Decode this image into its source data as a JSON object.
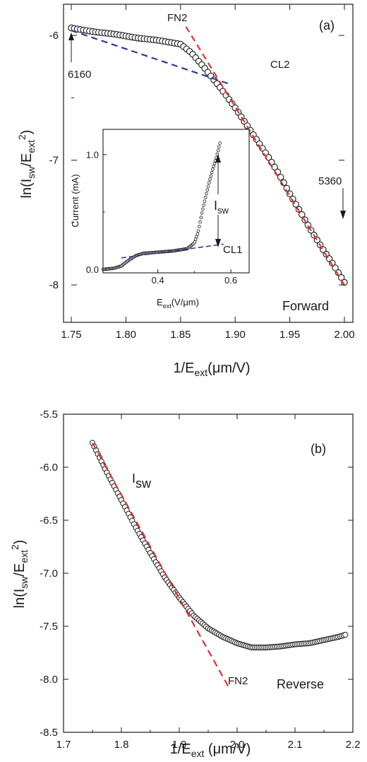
{
  "colors": {
    "fit_fn": "#e03030",
    "fit_cl": "#2a3a9a",
    "marker": "#1a1a1a",
    "marker_fill": "#ffffff"
  },
  "chart_data": [
    {
      "id": "a",
      "type": "scatter",
      "panel_label": "(a)",
      "xlabel": "1/E_ext(μm/V)",
      "xlabel_main": "1/E",
      "xlabel_sub": "ext",
      "xlabel_tail": "(μm/V)",
      "ylabel": "ln(I_sw/E_ext^2)",
      "ylabel_parts": {
        "pre": "ln(I",
        "sub1": "sw",
        "mid": "/E",
        "sub2": "ext",
        "sup": "2",
        "post": ")"
      },
      "xlim": [
        1.75,
        2.0
      ],
      "ylim": [
        -8.3,
        -5.75
      ],
      "xticks": [
        1.75,
        1.8,
        1.85,
        1.9,
        1.95,
        2.0
      ],
      "xtick_labels": [
        "1.75",
        "1.80",
        "1.85",
        "1.90",
        "1.95",
        "2.00"
      ],
      "yticks": [
        -6,
        -7,
        -8
      ],
      "ytick_labels": [
        "-6",
        "-7",
        "-8"
      ],
      "series": [
        {
          "x": [
            1.75,
            1.77,
            1.79,
            1.81,
            1.83,
            1.85,
            1.86,
            1.87,
            1.88,
            1.89,
            1.9,
            1.91,
            1.92,
            1.93,
            1.94,
            1.95,
            1.96,
            1.97,
            1.98,
            1.99,
            2.0
          ],
          "y": [
            -5.94,
            -5.97,
            -5.99,
            -6.02,
            -6.04,
            -6.07,
            -6.14,
            -6.24,
            -6.35,
            -6.46,
            -6.58,
            -6.71,
            -6.84,
            -6.97,
            -7.11,
            -7.27,
            -7.42,
            -7.57,
            -7.71,
            -7.84,
            -7.98
          ]
        }
      ],
      "fits": [
        {
          "label": "FN2",
          "x": [
            1.855,
            2.0
          ],
          "y": [
            -5.93,
            -8.0
          ]
        },
        {
          "label": "CL2",
          "x": [
            1.75,
            1.895
          ],
          "y": [
            -5.96,
            -6.39
          ]
        }
      ],
      "annotations": {
        "fn2": "FN2",
        "cl2": "CL2",
        "start": "6160",
        "end": "5360",
        "direction": "Forward"
      },
      "inset": {
        "type": "scatter",
        "xlabel": "E_ext(V/μm)",
        "xlabel_main": "E",
        "xlabel_sub": "ext",
        "xlabel_tail": "(V/μm)",
        "ylabel": "Current (mA)",
        "xlim": [
          0.25,
          0.65
        ],
        "ylim": [
          -0.03,
          1.22
        ],
        "xticks": [
          0.4,
          0.6
        ],
        "xtick_labels": [
          "0.4",
          "0.6"
        ],
        "yticks": [
          0.0,
          1.0
        ],
        "ytick_labels": [
          "0.0",
          "1.0"
        ],
        "series": [
          {
            "x": [
              0.25,
              0.28,
              0.3,
              0.32,
              0.34,
              0.36,
              0.4,
              0.44,
              0.48,
              0.5,
              0.51,
              0.52,
              0.53,
              0.54,
              0.55,
              0.56,
              0.57
            ],
            "y": [
              0.0,
              0.01,
              0.03,
              0.08,
              0.12,
              0.14,
              0.15,
              0.16,
              0.18,
              0.23,
              0.32,
              0.48,
              0.62,
              0.75,
              0.87,
              0.97,
              1.1
            ]
          }
        ],
        "fits": [
          {
            "label": "CL1",
            "x": [
              0.3,
              0.58
            ],
            "y": [
              0.1,
              0.22
            ]
          }
        ],
        "annotations": {
          "isw": "I",
          "isw_sub": "sw",
          "cl1": "CL1"
        }
      }
    },
    {
      "id": "b",
      "type": "scatter",
      "panel_label": "(b)",
      "xlabel": "1/E_ext (μm/V)",
      "xlabel_main": "1/E",
      "xlabel_sub": "ext",
      "xlabel_tail": " (μm/V)",
      "ylabel": "ln(I_sw/E_ext^2)",
      "ylabel_parts": {
        "pre": "ln(I",
        "sub1": "sw",
        "mid": "/E",
        "sub2": "ext",
        "sup": "2",
        "post": ")"
      },
      "xlim": [
        1.7,
        2.2
      ],
      "ylim": [
        -8.5,
        -5.5
      ],
      "xticks": [
        1.7,
        1.8,
        1.9,
        2.0,
        2.1,
        2.2
      ],
      "xtick_labels": [
        "1.7",
        "1.8",
        "1.9",
        "2.0",
        "2.1",
        "2.2"
      ],
      "yticks": [
        -5.5,
        -6.0,
        -6.5,
        -7.0,
        -7.5,
        -8.0,
        -8.5
      ],
      "ytick_labels": [
        "-5.5",
        "-6.0",
        "-6.5",
        "-7.0",
        "-7.5",
        "-8.0",
        "-8.5"
      ],
      "series": [
        {
          "x": [
            1.75,
            1.775,
            1.8,
            1.825,
            1.85,
            1.875,
            1.9,
            1.925,
            1.95,
            1.975,
            2.0,
            2.025,
            2.05,
            2.075,
            2.1,
            2.125,
            2.15,
            2.175,
            2.187
          ],
          "y": [
            -5.77,
            -6.05,
            -6.31,
            -6.57,
            -6.81,
            -7.04,
            -7.23,
            -7.4,
            -7.52,
            -7.6,
            -7.66,
            -7.7,
            -7.7,
            -7.69,
            -7.67,
            -7.66,
            -7.63,
            -7.6,
            -7.58
          ]
        }
      ],
      "fits": [
        {
          "label": "FN2",
          "x": [
            1.75,
            1.985
          ],
          "y": [
            -5.77,
            -8.07
          ]
        }
      ],
      "annotations": {
        "fn2": "FN2",
        "isw": "I",
        "isw_sub": "sw",
        "direction": "Reverse"
      }
    }
  ]
}
